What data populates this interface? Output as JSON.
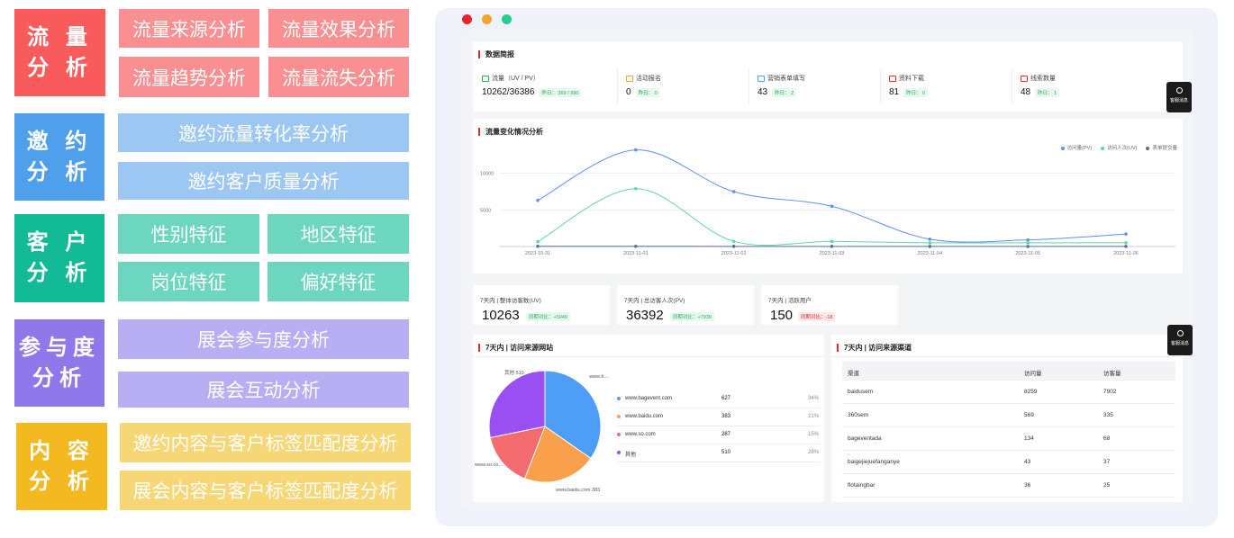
{
  "feature_map": {
    "categories": [
      {
        "line1": "流 量",
        "line2": "分 析",
        "color": "#f95a5b",
        "tiles": [
          "流量来源分析",
          "流量效果分析",
          "流量趋势分析",
          "流量流失分析"
        ],
        "tile_color": "#f98f90"
      },
      {
        "line1": "邀 约",
        "line2": "分 析",
        "color": "#4f9fec",
        "tiles": [
          "邀约流量转化率分析",
          "邀约客户质量分析"
        ],
        "tile_color": "#9cc7f3"
      },
      {
        "line1": "客 户",
        "line2": "分 析",
        "color": "#12bb95",
        "tiles": [
          "性别特征",
          "地区特征",
          "岗位特征",
          "偏好特征"
        ],
        "tile_color": "#6cd6bf"
      },
      {
        "line1": "参与度",
        "line2": "分析",
        "color": "#8e78ea",
        "tiles": [
          "展会参与度分析",
          "展会互动分析"
        ],
        "tile_color": "#b7aef3"
      },
      {
        "line1": "内 容",
        "line2": "分 析",
        "color": "#f4b820",
        "tiles": [
          "邀约内容与客户标签匹配度分析",
          "展会内容与客户标签匹配度分析"
        ],
        "tile_color": "#f7d676"
      }
    ]
  },
  "dashboard": {
    "window_dots": [
      "#e5262c",
      "#f2a32a",
      "#28cc8c"
    ],
    "brief": {
      "title": "数据简报",
      "stats": [
        {
          "label": "流量（UV / PV）",
          "value": "10262/36386",
          "chip": "昨日： 369 / 990",
          "icon_color": "#2aab5a"
        },
        {
          "label": "活动报名",
          "value": "0",
          "chip": "昨日： 0",
          "icon_color": "#f2a32a"
        },
        {
          "label": "营销表单填写",
          "value": "43",
          "chip": "昨日： 2",
          "icon_color": "#4f9fec"
        },
        {
          "label": "资料下载",
          "value": "81",
          "chip": "昨日： 0",
          "icon_color": "#e5262c"
        },
        {
          "label": "线索数量",
          "value": "48",
          "chip": "昨日： 1",
          "icon_color": "#e5262c"
        }
      ]
    },
    "service_button": "客服消息",
    "trend": {
      "title": "流量变化情况分析",
      "legend": [
        {
          "name": "访问量(PV)",
          "color": "#5b8ff9"
        },
        {
          "name": "访问人次(UV)",
          "color": "#5ad8a6"
        },
        {
          "name": "表单提交量",
          "color": "#5d7092"
        }
      ],
      "ticks_y": [
        "10000",
        "5000"
      ],
      "ticks_x": [
        "2023-10-31",
        "2023-11-01",
        "2023-11-02",
        "2023-11-03",
        "2023-11-04",
        "2023-11-05",
        "2023-11-06"
      ]
    },
    "kpis": [
      {
        "title": "7天内 | 整体访客数(UV)",
        "value": "10263",
        "chip": "同期对比：+5049",
        "down": false
      },
      {
        "title": "7天内 | 总访客人次(PV)",
        "value": "36392",
        "chip": "同期对比：+7939",
        "down": false
      },
      {
        "title": "7天内 | 活跃用户",
        "value": "150",
        "chip": "同期对比：-18",
        "down": true
      }
    ],
    "sites": {
      "title": "7天内 | 访问来源网站",
      "pie_labels": [
        "其他 510",
        "www.b...",
        "www.so.co...",
        "www.baidu.com 383"
      ],
      "rows": [
        {
          "name": "www.bagevent.com",
          "count": "627",
          "pct": "34%",
          "color": "#4e9df6"
        },
        {
          "name": "www.baidu.com",
          "count": "383",
          "pct": "21%",
          "color": "#f9a04d"
        },
        {
          "name": "www.so.com",
          "count": "287",
          "pct": "15%",
          "color": "#f46b6f"
        },
        {
          "name": "其他",
          "count": "510",
          "pct": "28%",
          "color": "#9a4ff2"
        }
      ]
    },
    "channels": {
      "title": "7天内 | 访问来源渠道",
      "headers": [
        "渠道",
        "访问量",
        "访客量"
      ],
      "rows": [
        [
          "baidusem",
          "8259",
          "7902"
        ],
        [
          "360sem",
          "569",
          "335"
        ],
        [
          "bageventada",
          "134",
          "68"
        ],
        [
          "baigejiejuefanganye",
          "43",
          "37"
        ],
        [
          "flotaingbar",
          "36",
          "25"
        ]
      ]
    }
  },
  "chart_data": {
    "type": "line",
    "x": [
      "2023-10-31",
      "2023-11-01",
      "2023-11-02",
      "2023-11-03",
      "2023-11-04",
      "2023-11-05",
      "2023-11-06"
    ],
    "series": [
      {
        "name": "访问量(PV)",
        "values": [
          6300,
          13200,
          7500,
          5500,
          1000,
          900,
          1700
        ]
      },
      {
        "name": "访问人次(UV)",
        "values": [
          650,
          7900,
          700,
          700,
          500,
          500,
          500
        ]
      },
      {
        "name": "表单提交量",
        "values": [
          30,
          30,
          20,
          20,
          10,
          10,
          10
        ]
      }
    ],
    "ylim": [
      0,
      15000
    ],
    "grid": true,
    "legend": "top-right"
  }
}
